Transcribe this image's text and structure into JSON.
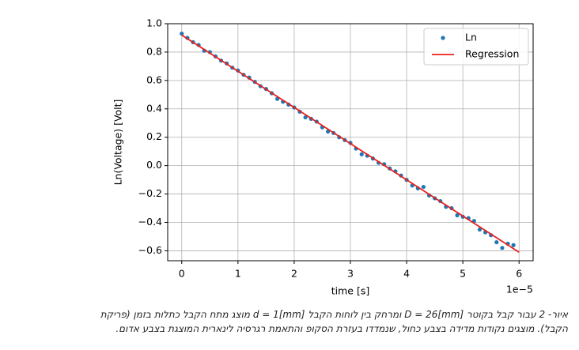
{
  "chart_data": {
    "type": "scatter",
    "xlabel": "time [s]",
    "ylabel": "Ln(Voltage) [Volt]",
    "x_offset_label": "1e−5",
    "xlim": [
      -0.25,
      6.25
    ],
    "ylim": [
      -0.67,
      1.0
    ],
    "xticks": [
      0,
      1,
      2,
      3,
      4,
      5,
      6
    ],
    "yticks": [
      {
        "value": -0.6,
        "label": "−0.6"
      },
      {
        "value": -0.4,
        "label": "−0.4"
      },
      {
        "value": -0.2,
        "label": "−0.2"
      },
      {
        "value": 0,
        "label": "0.0"
      },
      {
        "value": 0.2,
        "label": "0.2"
      },
      {
        "value": 0.4,
        "label": "0.4"
      },
      {
        "value": 0.6,
        "label": "0.6"
      },
      {
        "value": 0.8,
        "label": "0.8"
      },
      {
        "value": 1.0,
        "label": "1.0"
      }
    ],
    "grid": true,
    "legend": "upper right",
    "series": [
      {
        "name": "Ln",
        "kind": "scatter",
        "color": "#1f77b4",
        "x": [
          0.0,
          0.1,
          0.2,
          0.3,
          0.4,
          0.5,
          0.6,
          0.7,
          0.8,
          0.9,
          1.0,
          1.1,
          1.2,
          1.3,
          1.4,
          1.5,
          1.6,
          1.7,
          1.8,
          1.9,
          2.0,
          2.1,
          2.2,
          2.3,
          2.4,
          2.5,
          2.6,
          2.7,
          2.8,
          2.9,
          3.0,
          3.1,
          3.2,
          3.3,
          3.4,
          3.5,
          3.6,
          3.7,
          3.8,
          3.9,
          4.0,
          4.1,
          4.2,
          4.3,
          4.4,
          4.5,
          4.6,
          4.7,
          4.8,
          4.9,
          5.0,
          5.1,
          5.2,
          5.3,
          5.4,
          5.5,
          5.6,
          5.7,
          5.8,
          5.9
        ],
        "values": [
          0.93,
          0.9,
          0.87,
          0.85,
          0.81,
          0.8,
          0.77,
          0.74,
          0.72,
          0.69,
          0.67,
          0.64,
          0.62,
          0.59,
          0.56,
          0.54,
          0.51,
          0.47,
          0.45,
          0.43,
          0.41,
          0.38,
          0.34,
          0.33,
          0.31,
          0.27,
          0.24,
          0.23,
          0.2,
          0.18,
          0.16,
          0.12,
          0.08,
          0.07,
          0.05,
          0.02,
          0.01,
          -0.02,
          -0.04,
          -0.07,
          -0.1,
          -0.14,
          -0.16,
          -0.15,
          -0.21,
          -0.23,
          -0.25,
          -0.29,
          -0.3,
          -0.35,
          -0.36,
          -0.37,
          -0.39,
          -0.45,
          -0.47,
          -0.49,
          -0.54,
          -0.58,
          -0.55,
          -0.56
        ]
      },
      {
        "name": "Regression",
        "kind": "line",
        "color": "#e8201c",
        "x": [
          0,
          6
        ],
        "values": [
          0.92,
          -0.61
        ]
      }
    ]
  },
  "caption": {
    "lines": [
      "איור- 2 עבור קבל בקוטר D = 26[mm] ומרחק בין לוחות הקבל d = 1[mm] מוצג מתח הקבל כתלות בזמן (פריקת",
      "הקבל). מוצגים נקודות מדידה בצבע כחול, שנמדדו בעזרת הסקופ והתאמת רגרסיה לינארית המוצגת בצבע אדום."
    ]
  }
}
